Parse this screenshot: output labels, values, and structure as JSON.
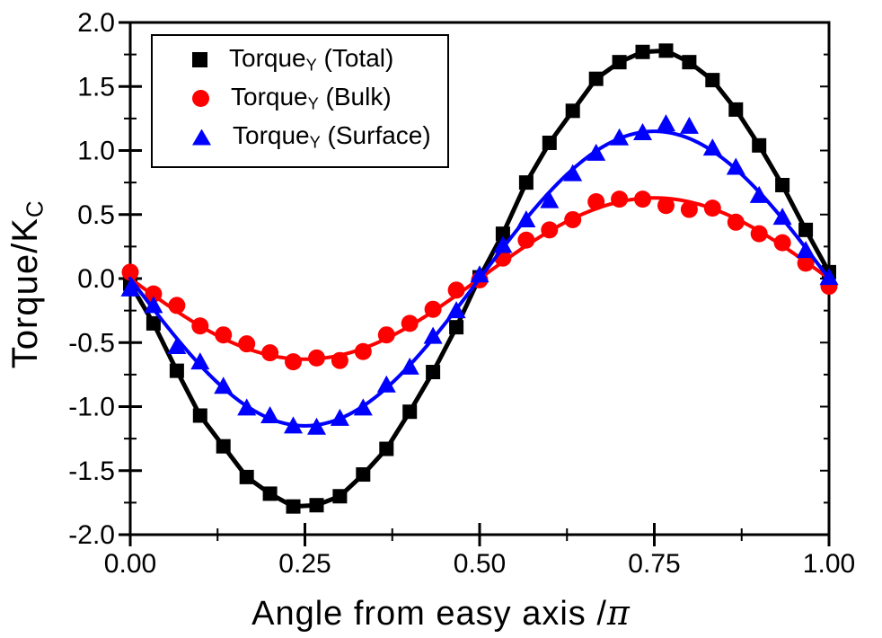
{
  "labels": {
    "ylabel_main": "Torque/K",
    "ylabel_sub": "C",
    "xlabel_main": "Angle from easy axis /",
    "xlabel_pi": "π"
  },
  "chart_data": {
    "type": "scatter+line",
    "title": "",
    "xlabel": "Angle from easy axis /π",
    "ylabel": "Torque/K_C",
    "xlim": [
      0,
      1
    ],
    "ylim": [
      -2,
      2
    ],
    "grid": false,
    "legend_position": "top-left-inside",
    "x_ticks": [
      0,
      0.25,
      0.5,
      0.75,
      1
    ],
    "x_tick_labels": [
      "0.00",
      "0.25",
      "0.50",
      "0.75",
      "1.00"
    ],
    "x_minor_step": 0.125,
    "y_ticks": [
      2,
      1.5,
      1,
      0.5,
      0,
      -0.5,
      -1,
      -1.5,
      -2
    ],
    "y_tick_labels": [
      "2.0",
      "1.5",
      "1.0",
      "0.5",
      "0.0",
      "-0.5",
      "-1.0",
      "-1.5",
      "-2.0"
    ],
    "y_minor_step": 0.25,
    "x": [
      0,
      0.0333,
      0.0667,
      0.1,
      0.1333,
      0.1667,
      0.2,
      0.2333,
      0.2667,
      0.3,
      0.3333,
      0.3667,
      0.4,
      0.4333,
      0.4667,
      0.5,
      0.5333,
      0.5667,
      0.6,
      0.6333,
      0.6667,
      0.7,
      0.7333,
      0.7667,
      0.8,
      0.8333,
      0.8667,
      0.9,
      0.9333,
      0.9667,
      1
    ],
    "series": [
      {
        "name": "TorqueY (Total)",
        "legend": {
          "prefix": "Torque",
          "sub": "Y",
          "suffix": " (Total)"
        },
        "marker": "square",
        "color": "#000000",
        "line": "through-points",
        "fit_formula": "y = -1.78·sin(2πx)",
        "amplitude": -1.78,
        "values": [
          -0.04,
          -0.35,
          -0.72,
          -1.07,
          -1.31,
          -1.55,
          -1.68,
          -1.78,
          -1.77,
          -1.7,
          -1.53,
          -1.33,
          -1.04,
          -0.73,
          -0.38,
          0.01,
          0.35,
          0.75,
          1.06,
          1.31,
          1.56,
          1.69,
          1.77,
          1.78,
          1.69,
          1.55,
          1.32,
          1.04,
          0.73,
          0.38,
          0.05
        ]
      },
      {
        "name": "TorqueY (Bulk)",
        "legend": {
          "prefix": "Torque",
          "sub": "Y",
          "suffix": " (Bulk)"
        },
        "marker": "circle",
        "color": "#ff0000",
        "line": "sine-fit",
        "fit_formula": "y = -0.63·sin(2πx)",
        "amplitude": -0.63,
        "values": [
          0.05,
          -0.12,
          -0.21,
          -0.37,
          -0.44,
          -0.51,
          -0.58,
          -0.65,
          -0.62,
          -0.64,
          -0.57,
          -0.44,
          -0.35,
          -0.24,
          -0.09,
          -0.01,
          0.16,
          0.3,
          0.38,
          0.46,
          0.6,
          0.62,
          0.62,
          0.57,
          0.54,
          0.55,
          0.44,
          0.35,
          0.28,
          0.12,
          -0.06
        ]
      },
      {
        "name": "TorqueY (Surface)",
        "legend": {
          "prefix": "Torque",
          "sub": "Y",
          "suffix": " (Surface)"
        },
        "marker": "triangle",
        "color": "#0000ff",
        "line": "sine-fit",
        "fit_formula": "y = -1.15·sin(2πx)",
        "amplitude": -1.15,
        "values": [
          -0.08,
          -0.21,
          -0.53,
          -0.65,
          -0.84,
          -1.01,
          -1.07,
          -1.15,
          -1.16,
          -1.09,
          -1.01,
          -0.83,
          -0.69,
          -0.45,
          -0.25,
          0.03,
          0.26,
          0.46,
          0.61,
          0.82,
          0.98,
          1.1,
          1.14,
          1.21,
          1.19,
          1.02,
          0.87,
          0.65,
          0.48,
          0.22,
          0.01
        ]
      }
    ]
  }
}
